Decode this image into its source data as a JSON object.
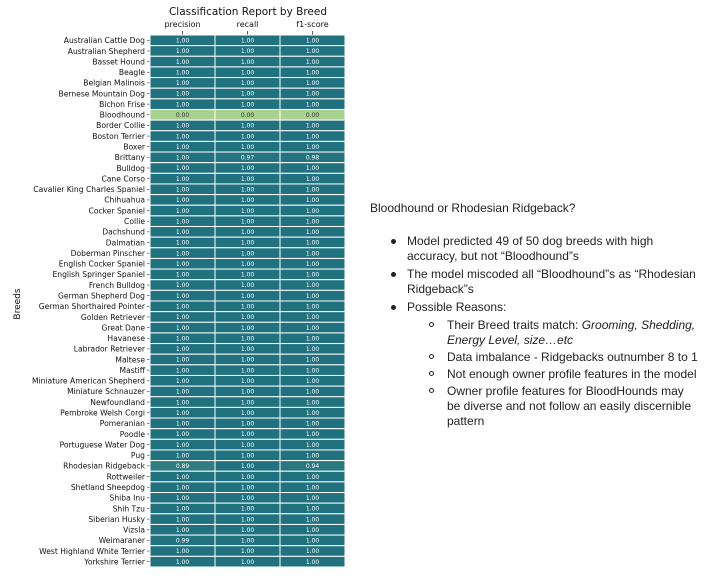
{
  "chart_data": {
    "type": "heatmap",
    "title": "Classification Report by Breed",
    "ylabel": "Breeds",
    "xlabel": "",
    "columns": [
      "precision",
      "recall",
      "f1-score"
    ],
    "rows": [
      "Australian Cattle Dog",
      "Australian Shepherd",
      "Basset Hound",
      "Beagle",
      "Belgian Malinois",
      "Bernese Mountain Dog",
      "Bichon Frise",
      "Bloodhound",
      "Border Collie",
      "Boston Terrier",
      "Boxer",
      "Brittany",
      "Bulldog",
      "Cane Corso",
      "Cavalier King Charles Spaniel",
      "Chihuahua",
      "Cocker Spaniel",
      "Collie",
      "Dachshund",
      "Dalmatian",
      "Doberman Pinscher",
      "English Cocker Spaniel",
      "English Springer Spaniel",
      "French Bulldog",
      "German Shepherd Dog",
      "German Shorthaired Pointer",
      "Golden Retriever",
      "Great Dane",
      "Havanese",
      "Labrador Retriever",
      "Maltese",
      "Mastiff",
      "Miniature American Shepherd",
      "Miniature Schnauzer",
      "Newfoundland",
      "Pembroke Welsh Corgi",
      "Pomeranian",
      "Poodle",
      "Portuguese Water Dog",
      "Pug",
      "Rhodesian Ridgeback",
      "Rottweiler",
      "Shetland Sheepdog",
      "Shiba Inu",
      "Shih Tzu",
      "Siberian Husky",
      "Vizsla",
      "Weimaraner",
      "West Highland White Terrier",
      "Yorkshire Terrier"
    ],
    "values": [
      [
        1.0,
        1.0,
        1.0
      ],
      [
        1.0,
        1.0,
        1.0
      ],
      [
        1.0,
        1.0,
        1.0
      ],
      [
        1.0,
        1.0,
        1.0
      ],
      [
        1.0,
        1.0,
        1.0
      ],
      [
        1.0,
        1.0,
        1.0
      ],
      [
        1.0,
        1.0,
        1.0
      ],
      [
        0.0,
        0.0,
        0.0
      ],
      [
        1.0,
        1.0,
        1.0
      ],
      [
        1.0,
        1.0,
        1.0
      ],
      [
        1.0,
        1.0,
        1.0
      ],
      [
        1.0,
        0.97,
        0.98
      ],
      [
        1.0,
        1.0,
        1.0
      ],
      [
        1.0,
        1.0,
        1.0
      ],
      [
        1.0,
        1.0,
        1.0
      ],
      [
        1.0,
        1.0,
        1.0
      ],
      [
        1.0,
        1.0,
        1.0
      ],
      [
        1.0,
        1.0,
        1.0
      ],
      [
        1.0,
        1.0,
        1.0
      ],
      [
        1.0,
        1.0,
        1.0
      ],
      [
        1.0,
        1.0,
        1.0
      ],
      [
        1.0,
        1.0,
        1.0
      ],
      [
        1.0,
        1.0,
        1.0
      ],
      [
        1.0,
        1.0,
        1.0
      ],
      [
        1.0,
        1.0,
        1.0
      ],
      [
        1.0,
        1.0,
        1.0
      ],
      [
        1.0,
        1.0,
        1.0
      ],
      [
        1.0,
        1.0,
        1.0
      ],
      [
        1.0,
        1.0,
        1.0
      ],
      [
        1.0,
        1.0,
        1.0
      ],
      [
        1.0,
        1.0,
        1.0
      ],
      [
        1.0,
        1.0,
        1.0
      ],
      [
        1.0,
        1.0,
        1.0
      ],
      [
        1.0,
        1.0,
        1.0
      ],
      [
        1.0,
        1.0,
        1.0
      ],
      [
        1.0,
        1.0,
        1.0
      ],
      [
        1.0,
        1.0,
        1.0
      ],
      [
        1.0,
        1.0,
        1.0
      ],
      [
        1.0,
        1.0,
        1.0
      ],
      [
        1.0,
        1.0,
        1.0
      ],
      [
        0.89,
        1.0,
        0.94
      ],
      [
        1.0,
        1.0,
        1.0
      ],
      [
        1.0,
        1.0,
        1.0
      ],
      [
        1.0,
        1.0,
        1.0
      ],
      [
        1.0,
        1.0,
        1.0
      ],
      [
        1.0,
        1.0,
        1.0
      ],
      [
        1.0,
        1.0,
        1.0
      ],
      [
        0.99,
        1.0,
        1.0
      ],
      [
        1.0,
        1.0,
        1.0
      ],
      [
        1.0,
        1.0,
        1.0
      ]
    ],
    "value_format": "0.00",
    "color_scale": {
      "low": "#a8d08e",
      "high": "#20727f"
    },
    "legend": "none",
    "grid": false
  },
  "notes": {
    "question": "Bloodhound or Rhodesian Ridgeback?",
    "bullets": [
      "Model predicted 49 of 50 dog breeds with high accuracy, but not “Bloodhound”s",
      "The model miscoded all “Bloodhound”s as “Rhodesian Ridgeback”s",
      "Possible Reasons:"
    ],
    "reasons": {
      "r1_prefix": "Their Breed traits match: ",
      "r1_italic": "Grooming, Shedding, Energy Level, size…etc",
      "r2": "Data imbalance - Ridgebacks outnumber 8 to 1",
      "r3": "Not enough owner profile features in the model",
      "r4": "Owner profile features for BloodHounds may be diverse and not follow an easily discernible pattern"
    }
  }
}
